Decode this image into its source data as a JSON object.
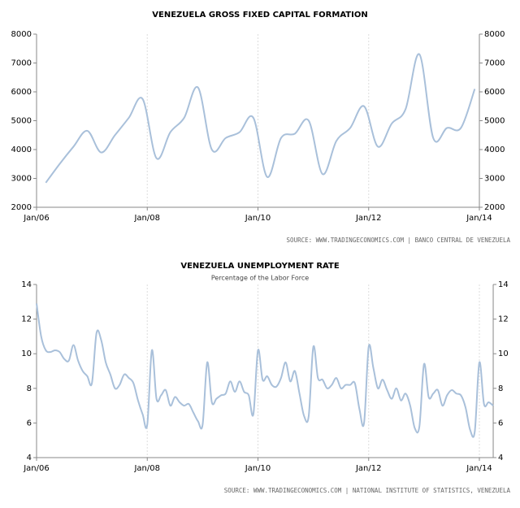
{
  "chart_data": [
    {
      "type": "line",
      "title": "VENEZUELA GROSS FIXED CAPITAL FORMATION",
      "source": "SOURCE: WWW.TRADINGECONOMICS.COM | BANCO CENTRAL DE VENEZUELA",
      "x": [
        "2006-03",
        "2006-06",
        "2006-09",
        "2006-12",
        "2007-03",
        "2007-06",
        "2007-09",
        "2007-12",
        "2008-03",
        "2008-06",
        "2008-09",
        "2008-12",
        "2009-03",
        "2009-06",
        "2009-09",
        "2009-12",
        "2010-03",
        "2010-06",
        "2010-09",
        "2010-12",
        "2011-03",
        "2011-06",
        "2011-09",
        "2011-12",
        "2012-03",
        "2012-06",
        "2012-09",
        "2012-12",
        "2013-03",
        "2013-06",
        "2013-09",
        "2013-12"
      ],
      "series": [
        {
          "color": "#a9c0da",
          "values": [
            2850,
            3500,
            4100,
            4650,
            3900,
            4500,
            5100,
            5750,
            3700,
            4600,
            5100,
            6150,
            4000,
            4400,
            4600,
            5100,
            3050,
            4400,
            4550,
            5000,
            3150,
            4300,
            4750,
            5500,
            4100,
            4900,
            5400,
            7300,
            4400,
            4750,
            4750,
            6100
          ]
        }
      ],
      "xlim": [
        "2006-01",
        "2014-01"
      ],
      "xticks": [
        {
          "value": "2006-01",
          "label": "Jan/06"
        },
        {
          "value": "2008-01",
          "label": "Jan/08"
        },
        {
          "value": "2010-01",
          "label": "Jan/10"
        },
        {
          "value": "2012-01",
          "label": "Jan/12"
        },
        {
          "value": "2014-01",
          "label": "Jan/14"
        }
      ],
      "ylim": [
        2000,
        8000
      ],
      "yticks": [
        2000,
        3000,
        4000,
        5000,
        6000,
        7000,
        8000
      ],
      "mirror_axis": true,
      "grid": true
    },
    {
      "type": "line",
      "title": "VENEZUELA UNEMPLOYMENT RATE",
      "subtitle": "Percentage of the Labor Force",
      "source": "SOURCE: WWW.TRADINGECONOMICS.COM | NATIONAL INSTITUTE OF STATISTICS, VENEZUELA",
      "x": [
        "2006-01",
        "2006-02",
        "2006-03",
        "2006-04",
        "2006-05",
        "2006-06",
        "2006-07",
        "2006-08",
        "2006-09",
        "2006-10",
        "2006-11",
        "2006-12",
        "2007-01",
        "2007-02",
        "2007-03",
        "2007-04",
        "2007-05",
        "2007-06",
        "2007-07",
        "2007-08",
        "2007-09",
        "2007-10",
        "2007-11",
        "2007-12",
        "2008-01",
        "2008-02",
        "2008-03",
        "2008-04",
        "2008-05",
        "2008-06",
        "2008-07",
        "2008-08",
        "2008-09",
        "2008-10",
        "2008-11",
        "2008-12",
        "2009-01",
        "2009-02",
        "2009-03",
        "2009-04",
        "2009-05",
        "2009-06",
        "2009-07",
        "2009-08",
        "2009-09",
        "2009-10",
        "2009-11",
        "2009-12",
        "2010-01",
        "2010-02",
        "2010-03",
        "2010-04",
        "2010-05",
        "2010-06",
        "2010-07",
        "2010-08",
        "2010-09",
        "2010-10",
        "2010-11",
        "2010-12",
        "2011-01",
        "2011-02",
        "2011-03",
        "2011-04",
        "2011-05",
        "2011-06",
        "2011-07",
        "2011-08",
        "2011-09",
        "2011-10",
        "2011-11",
        "2011-12",
        "2012-01",
        "2012-02",
        "2012-03",
        "2012-04",
        "2012-05",
        "2012-06",
        "2012-07",
        "2012-08",
        "2012-09",
        "2012-10",
        "2012-11",
        "2012-12",
        "2013-01",
        "2013-02",
        "2013-03",
        "2013-04",
        "2013-05",
        "2013-06",
        "2013-07",
        "2013-08",
        "2013-09",
        "2013-10",
        "2013-11",
        "2013-12",
        "2014-01",
        "2014-02",
        "2014-03",
        "2014-04"
      ],
      "series": [
        {
          "color": "#a9c0da",
          "values": [
            12.9,
            11,
            10.2,
            10.1,
            10.2,
            10.1,
            9.7,
            9.6,
            10.5,
            9.6,
            9,
            8.7,
            8.3,
            11.2,
            10.8,
            9.5,
            8.8,
            8,
            8.2,
            8.8,
            8.6,
            8.3,
            7.3,
            6.5,
            5.9,
            10.2,
            7.4,
            7.6,
            7.9,
            7,
            7.5,
            7.2,
            7,
            7.1,
            6.6,
            6.1,
            5.9,
            9.5,
            7.2,
            7.4,
            7.6,
            7.7,
            8.4,
            7.8,
            8.4,
            7.8,
            7.6,
            6.5,
            10.2,
            8.5,
            8.7,
            8.2,
            8.1,
            8.6,
            9.5,
            8.4,
            9,
            7.7,
            6.4,
            6.4,
            10.4,
            8.6,
            8.5,
            8,
            8.2,
            8.6,
            8,
            8.2,
            8.2,
            8.3,
            6.8,
            6,
            10.4,
            9.2,
            8,
            8.5,
            7.9,
            7.4,
            8,
            7.3,
            7.7,
            7,
            5.7,
            5.8,
            9.4,
            7.5,
            7.7,
            7.9,
            7,
            7.6,
            7.9,
            7.7,
            7.6,
            6.9,
            5.6,
            5.5,
            9.5,
            7.1,
            7.2,
            7
          ]
        }
      ],
      "xlim": [
        "2006-01",
        "2014-04"
      ],
      "xticks": [
        {
          "value": "2006-01",
          "label": "Jan/06"
        },
        {
          "value": "2008-01",
          "label": "Jan/08"
        },
        {
          "value": "2010-01",
          "label": "Jan/10"
        },
        {
          "value": "2012-01",
          "label": "Jan/12"
        },
        {
          "value": "2014-01",
          "label": "Jan/14"
        }
      ],
      "ylim": [
        4,
        14
      ],
      "yticks": [
        4,
        6,
        8,
        10,
        12,
        14
      ],
      "mirror_axis": true,
      "grid": true
    }
  ]
}
